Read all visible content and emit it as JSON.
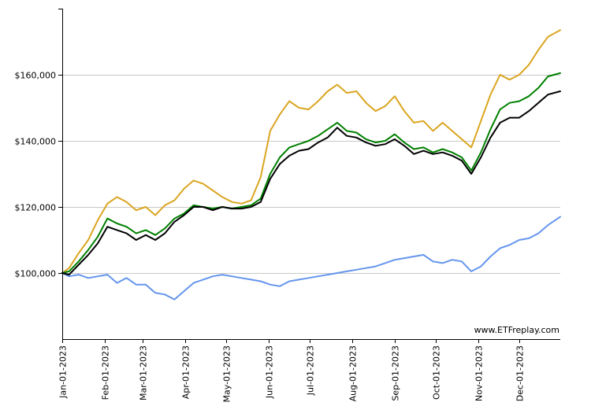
{
  "watermark": "www.ETFreplay.com",
  "chart_data": {
    "type": "line",
    "title": "",
    "xlabel": "",
    "ylabel": "",
    "xlim": [
      "2023-01-01",
      "2023-12-31"
    ],
    "ylim": [
      80000,
      180000
    ],
    "grid": "horizontal",
    "legend": "none",
    "y_ticks": [
      {
        "value": 100000,
        "label": "$100,000"
      },
      {
        "value": 120000,
        "label": "$120,000"
      },
      {
        "value": 140000,
        "label": "$140,000"
      },
      {
        "value": 160000,
        "label": "$160,000"
      }
    ],
    "x_ticks": [
      {
        "value": "2023-01-01",
        "label": "Jan-01-2023"
      },
      {
        "value": "2023-02-01",
        "label": "Feb-01-2023"
      },
      {
        "value": "2023-03-01",
        "label": "Mar-01-2023"
      },
      {
        "value": "2023-04-01",
        "label": "Apr-01-2023"
      },
      {
        "value": "2023-05-01",
        "label": "May-01-2023"
      },
      {
        "value": "2023-06-01",
        "label": "Jun-01-2023"
      },
      {
        "value": "2023-07-01",
        "label": "Jul-01-2023"
      },
      {
        "value": "2023-08-01",
        "label": "Aug-01-2023"
      },
      {
        "value": "2023-09-01",
        "label": "Sep-01-2023"
      },
      {
        "value": "2023-10-01",
        "label": "Oct-01-2023"
      },
      {
        "value": "2023-11-01",
        "label": "Nov-01-2023"
      },
      {
        "value": "2023-12-01",
        "label": "Dec-01-2023"
      }
    ],
    "series": [
      {
        "color": "#6495ED",
        "points": [
          [
            "2023-01-01",
            100000
          ],
          [
            "2023-01-06",
            99000
          ],
          [
            "2023-01-13",
            99500
          ],
          [
            "2023-01-20",
            98500
          ],
          [
            "2023-01-27",
            99000
          ],
          [
            "2023-02-03",
            99500
          ],
          [
            "2023-02-10",
            97000
          ],
          [
            "2023-02-17",
            98500
          ],
          [
            "2023-02-24",
            96500
          ],
          [
            "2023-03-03",
            96500
          ],
          [
            "2023-03-10",
            94000
          ],
          [
            "2023-03-17",
            93500
          ],
          [
            "2023-03-24",
            92000
          ],
          [
            "2023-03-31",
            94500
          ],
          [
            "2023-04-07",
            97000
          ],
          [
            "2023-04-14",
            98000
          ],
          [
            "2023-04-21",
            99000
          ],
          [
            "2023-04-28",
            99500
          ],
          [
            "2023-05-05",
            99000
          ],
          [
            "2023-05-12",
            98500
          ],
          [
            "2023-05-19",
            98000
          ],
          [
            "2023-05-26",
            97500
          ],
          [
            "2023-06-02",
            96500
          ],
          [
            "2023-06-09",
            96000
          ],
          [
            "2023-06-16",
            97500
          ],
          [
            "2023-06-23",
            98000
          ],
          [
            "2023-06-30",
            98500
          ],
          [
            "2023-07-07",
            99000
          ],
          [
            "2023-07-14",
            99500
          ],
          [
            "2023-07-21",
            100000
          ],
          [
            "2023-07-28",
            100500
          ],
          [
            "2023-08-04",
            101000
          ],
          [
            "2023-08-11",
            101500
          ],
          [
            "2023-08-18",
            102000
          ],
          [
            "2023-08-25",
            103000
          ],
          [
            "2023-09-01",
            104000
          ],
          [
            "2023-09-08",
            104500
          ],
          [
            "2023-09-15",
            105000
          ],
          [
            "2023-09-22",
            105500
          ],
          [
            "2023-09-29",
            103500
          ],
          [
            "2023-10-06",
            103000
          ],
          [
            "2023-10-13",
            104000
          ],
          [
            "2023-10-20",
            103500
          ],
          [
            "2023-10-27",
            100500
          ],
          [
            "2023-11-03",
            102000
          ],
          [
            "2023-11-10",
            105000
          ],
          [
            "2023-11-17",
            107500
          ],
          [
            "2023-11-24",
            108500
          ],
          [
            "2023-12-01",
            110000
          ],
          [
            "2023-12-08",
            110500
          ],
          [
            "2023-12-15",
            112000
          ],
          [
            "2023-12-22",
            114500
          ],
          [
            "2023-12-31",
            117000
          ]
        ]
      },
      {
        "color": "#DAA520",
        "points": [
          [
            "2023-01-01",
            100000
          ],
          [
            "2023-01-06",
            101500
          ],
          [
            "2023-01-13",
            106000
          ],
          [
            "2023-01-20",
            110000
          ],
          [
            "2023-01-27",
            116000
          ],
          [
            "2023-02-03",
            121000
          ],
          [
            "2023-02-10",
            123000
          ],
          [
            "2023-02-17",
            121500
          ],
          [
            "2023-02-24",
            119000
          ],
          [
            "2023-03-03",
            120000
          ],
          [
            "2023-03-10",
            117500
          ],
          [
            "2023-03-17",
            120500
          ],
          [
            "2023-03-24",
            122000
          ],
          [
            "2023-03-31",
            125500
          ],
          [
            "2023-04-07",
            128000
          ],
          [
            "2023-04-14",
            127000
          ],
          [
            "2023-04-21",
            125000
          ],
          [
            "2023-04-28",
            123000
          ],
          [
            "2023-05-05",
            121500
          ],
          [
            "2023-05-12",
            121000
          ],
          [
            "2023-05-19",
            122000
          ],
          [
            "2023-05-26",
            129000
          ],
          [
            "2023-06-02",
            143000
          ],
          [
            "2023-06-09",
            148000
          ],
          [
            "2023-06-16",
            152000
          ],
          [
            "2023-06-23",
            150000
          ],
          [
            "2023-06-30",
            149500
          ],
          [
            "2023-07-07",
            152000
          ],
          [
            "2023-07-14",
            155000
          ],
          [
            "2023-07-21",
            157000
          ],
          [
            "2023-07-28",
            154500
          ],
          [
            "2023-08-04",
            155000
          ],
          [
            "2023-08-11",
            151500
          ],
          [
            "2023-08-18",
            149000
          ],
          [
            "2023-08-25",
            150500
          ],
          [
            "2023-09-01",
            153500
          ],
          [
            "2023-09-08",
            149000
          ],
          [
            "2023-09-15",
            145500
          ],
          [
            "2023-09-22",
            146000
          ],
          [
            "2023-09-29",
            143000
          ],
          [
            "2023-10-06",
            145500
          ],
          [
            "2023-10-13",
            143000
          ],
          [
            "2023-10-20",
            140500
          ],
          [
            "2023-10-27",
            138000
          ],
          [
            "2023-11-03",
            146000
          ],
          [
            "2023-11-10",
            154000
          ],
          [
            "2023-11-17",
            160000
          ],
          [
            "2023-11-24",
            158500
          ],
          [
            "2023-12-01",
            160000
          ],
          [
            "2023-12-08",
            163000
          ],
          [
            "2023-12-15",
            167500
          ],
          [
            "2023-12-22",
            171500
          ],
          [
            "2023-12-31",
            173500
          ]
        ]
      },
      {
        "color": "#008000",
        "points": [
          [
            "2023-01-01",
            100000
          ],
          [
            "2023-01-06",
            100500
          ],
          [
            "2023-01-13",
            103500
          ],
          [
            "2023-01-20",
            107000
          ],
          [
            "2023-01-27",
            111000
          ],
          [
            "2023-02-03",
            116500
          ],
          [
            "2023-02-10",
            115000
          ],
          [
            "2023-02-17",
            114000
          ],
          [
            "2023-02-24",
            112000
          ],
          [
            "2023-03-03",
            113000
          ],
          [
            "2023-03-10",
            111500
          ],
          [
            "2023-03-17",
            113500
          ],
          [
            "2023-03-24",
            116500
          ],
          [
            "2023-03-31",
            118000
          ],
          [
            "2023-04-07",
            120500
          ],
          [
            "2023-04-14",
            120000
          ],
          [
            "2023-04-21",
            119500
          ],
          [
            "2023-04-28",
            120000
          ],
          [
            "2023-05-05",
            119500
          ],
          [
            "2023-05-12",
            120000
          ],
          [
            "2023-05-19",
            120500
          ],
          [
            "2023-05-26",
            122500
          ],
          [
            "2023-06-02",
            130000
          ],
          [
            "2023-06-09",
            135000
          ],
          [
            "2023-06-16",
            138000
          ],
          [
            "2023-06-23",
            139000
          ],
          [
            "2023-06-30",
            140000
          ],
          [
            "2023-07-07",
            141500
          ],
          [
            "2023-07-14",
            143500
          ],
          [
            "2023-07-21",
            145500
          ],
          [
            "2023-07-28",
            143000
          ],
          [
            "2023-08-04",
            142500
          ],
          [
            "2023-08-11",
            140500
          ],
          [
            "2023-08-18",
            139500
          ],
          [
            "2023-08-25",
            140000
          ],
          [
            "2023-09-01",
            142000
          ],
          [
            "2023-09-08",
            139500
          ],
          [
            "2023-09-15",
            137500
          ],
          [
            "2023-09-22",
            138000
          ],
          [
            "2023-09-29",
            136500
          ],
          [
            "2023-10-06",
            137500
          ],
          [
            "2023-10-13",
            136500
          ],
          [
            "2023-10-20",
            135000
          ],
          [
            "2023-10-27",
            131000
          ],
          [
            "2023-11-03",
            136500
          ],
          [
            "2023-11-10",
            143500
          ],
          [
            "2023-11-17",
            149500
          ],
          [
            "2023-11-24",
            151500
          ],
          [
            "2023-12-01",
            152000
          ],
          [
            "2023-12-08",
            153500
          ],
          [
            "2023-12-15",
            156000
          ],
          [
            "2023-12-22",
            159500
          ],
          [
            "2023-12-31",
            160500
          ]
        ]
      },
      {
        "color": "#000000",
        "points": [
          [
            "2023-01-01",
            100000
          ],
          [
            "2023-01-06",
            99500
          ],
          [
            "2023-01-13",
            102500
          ],
          [
            "2023-01-20",
            105500
          ],
          [
            "2023-01-27",
            109000
          ],
          [
            "2023-02-03",
            114000
          ],
          [
            "2023-02-10",
            113000
          ],
          [
            "2023-02-17",
            112000
          ],
          [
            "2023-02-24",
            110000
          ],
          [
            "2023-03-03",
            111500
          ],
          [
            "2023-03-10",
            110000
          ],
          [
            "2023-03-17",
            112000
          ],
          [
            "2023-03-24",
            115500
          ],
          [
            "2023-03-31",
            117500
          ],
          [
            "2023-04-07",
            120000
          ],
          [
            "2023-04-14",
            120000
          ],
          [
            "2023-04-21",
            119000
          ],
          [
            "2023-04-28",
            120000
          ],
          [
            "2023-05-05",
            119500
          ],
          [
            "2023-05-12",
            119500
          ],
          [
            "2023-05-19",
            120000
          ],
          [
            "2023-05-26",
            121500
          ],
          [
            "2023-06-02",
            128500
          ],
          [
            "2023-06-09",
            133000
          ],
          [
            "2023-06-16",
            135500
          ],
          [
            "2023-06-23",
            137000
          ],
          [
            "2023-06-30",
            137500
          ],
          [
            "2023-07-07",
            139500
          ],
          [
            "2023-07-14",
            141000
          ],
          [
            "2023-07-21",
            144000
          ],
          [
            "2023-07-28",
            141500
          ],
          [
            "2023-08-04",
            141000
          ],
          [
            "2023-08-11",
            139500
          ],
          [
            "2023-08-18",
            138500
          ],
          [
            "2023-08-25",
            139000
          ],
          [
            "2023-09-01",
            140500
          ],
          [
            "2023-09-08",
            138500
          ],
          [
            "2023-09-15",
            136000
          ],
          [
            "2023-09-22",
            137000
          ],
          [
            "2023-09-29",
            136000
          ],
          [
            "2023-10-06",
            136500
          ],
          [
            "2023-10-13",
            135500
          ],
          [
            "2023-10-20",
            134000
          ],
          [
            "2023-10-27",
            130000
          ],
          [
            "2023-11-03",
            135000
          ],
          [
            "2023-11-10",
            141000
          ],
          [
            "2023-11-17",
            145500
          ],
          [
            "2023-11-24",
            147000
          ],
          [
            "2023-12-01",
            147000
          ],
          [
            "2023-12-08",
            149000
          ],
          [
            "2023-12-15",
            151500
          ],
          [
            "2023-12-22",
            154000
          ],
          [
            "2023-12-31",
            155000
          ]
        ]
      }
    ]
  }
}
